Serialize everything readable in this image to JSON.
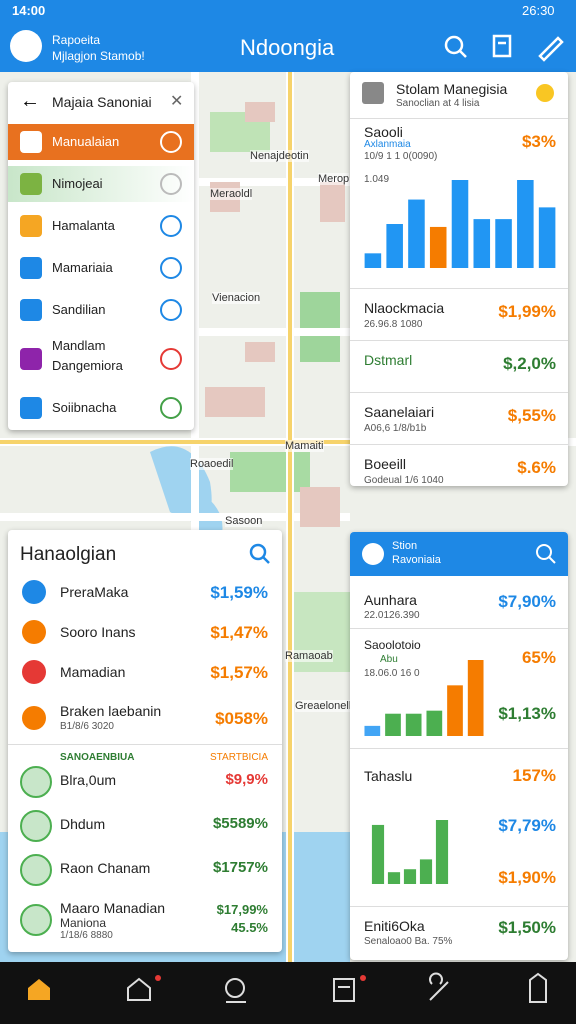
{
  "status": {
    "time": "14:00",
    "clock": "26:30"
  },
  "appbar": {
    "line1": "Rapoeita",
    "line2": "Mjlagjon Stamob!",
    "title": "Ndoongia"
  },
  "map_labels": [
    "Nenajdeotin",
    "Meraoldl",
    "Merop",
    "Vienacion",
    "Roaoedil",
    "Mamaiti",
    "Sasoon",
    "Ramaoab",
    "Greaelonell"
  ],
  "menu": {
    "title": "Majaia Sanoniai",
    "items": [
      {
        "label": "Manualaian"
      },
      {
        "label": "Nimojeai"
      },
      {
        "label": "Hamalanta"
      },
      {
        "label": "Mamariaia"
      },
      {
        "label": "Sandilian"
      },
      {
        "label": "Mandlam",
        "sub": "Dangemiora"
      },
      {
        "label": "Soiibnacha"
      }
    ]
  },
  "stats_card": {
    "title": "Stolam Manegisia",
    "subtitle": "Sanoclian at 4 lisia",
    "top": {
      "label": "Saooli",
      "sub1": "Axlanmaia",
      "sub2": "10/9 1 1 0(0090)",
      "value": "$3%",
      "chart_label": "1.049"
    },
    "chart": {
      "values": [
        15,
        45,
        70,
        42,
        90,
        50,
        50,
        90,
        62
      ],
      "colors": [
        "#2196f3",
        "#2196f3",
        "#2196f3",
        "#f57c00",
        "#2196f3",
        "#2196f3",
        "#2196f3",
        "#2196f3",
        "#2196f3"
      ]
    },
    "rows": [
      {
        "label": "Nlaockmacia",
        "sub": "26.96.8 1080",
        "value": "$1,99%"
      },
      {
        "label": "Dstmarl",
        "value": "$,2,0%"
      },
      {
        "label": "Saanelaiari",
        "sub": "A06,6 1/8/b1b",
        "value": "$,55%"
      },
      {
        "label": "Boeeill",
        "sub": "Godeual 1/6 1040",
        "value": "$.6%"
      }
    ]
  },
  "list_card": {
    "title": "Hanaolgian",
    "items": [
      {
        "label": "PreraMaka",
        "value": "$1,59%"
      },
      {
        "label": "Sooro Inans",
        "value": "$1,47%"
      },
      {
        "label": "Mamadian",
        "value": "$1,57%"
      },
      {
        "label": "Braken laebanin",
        "sub": "B1/8/6 3020",
        "value": "$058%"
      }
    ],
    "section_left": "SANOAENBIUA",
    "section_right": "STARTBICIA",
    "items2": [
      {
        "label": "Blra,0um",
        "value": "$9,9%"
      },
      {
        "label": "Dhdum",
        "value": "$5589%"
      },
      {
        "label": "Raon Chanam",
        "value": "$1757%"
      },
      {
        "label": "Maaro Manadian",
        "sub": "Maniona",
        "sub2": "1/18/6 8880",
        "value": "$17,99%",
        "value2": "45.5%"
      }
    ]
  },
  "right_card": {
    "header1": "Stion",
    "header2": "Ravoniaia",
    "row1": {
      "label": "Aunhara",
      "sub": "22.0126.390",
      "value": "$7,90%"
    },
    "block1": {
      "label": "Saoolotoio",
      "sub": "Abu",
      "sub2": "18.06.0 16 0",
      "value": "65%",
      "value2": "$1,13%"
    },
    "chart1": {
      "values": [
        10,
        22,
        22,
        25,
        50,
        75
      ],
      "colors": [
        "#42a5f5",
        "#4caf50",
        "#4caf50",
        "#4caf50",
        "#f57c00",
        "#f57c00"
      ]
    },
    "row2": {
      "label": "Tahaslu",
      "value": "157%"
    },
    "chart2": {
      "values": [
        60,
        12,
        15,
        25,
        65
      ],
      "colors": [
        "#4caf50",
        "#4caf50",
        "#4caf50",
        "#4caf50",
        "#4caf50"
      ]
    },
    "block2": {
      "value": "$7,79%",
      "value2": "$1,90%"
    },
    "row3": {
      "label": "Eniti6Oka",
      "sub": "Senaloao0 Ba. 75%",
      "value": "$1,50%"
    }
  }
}
